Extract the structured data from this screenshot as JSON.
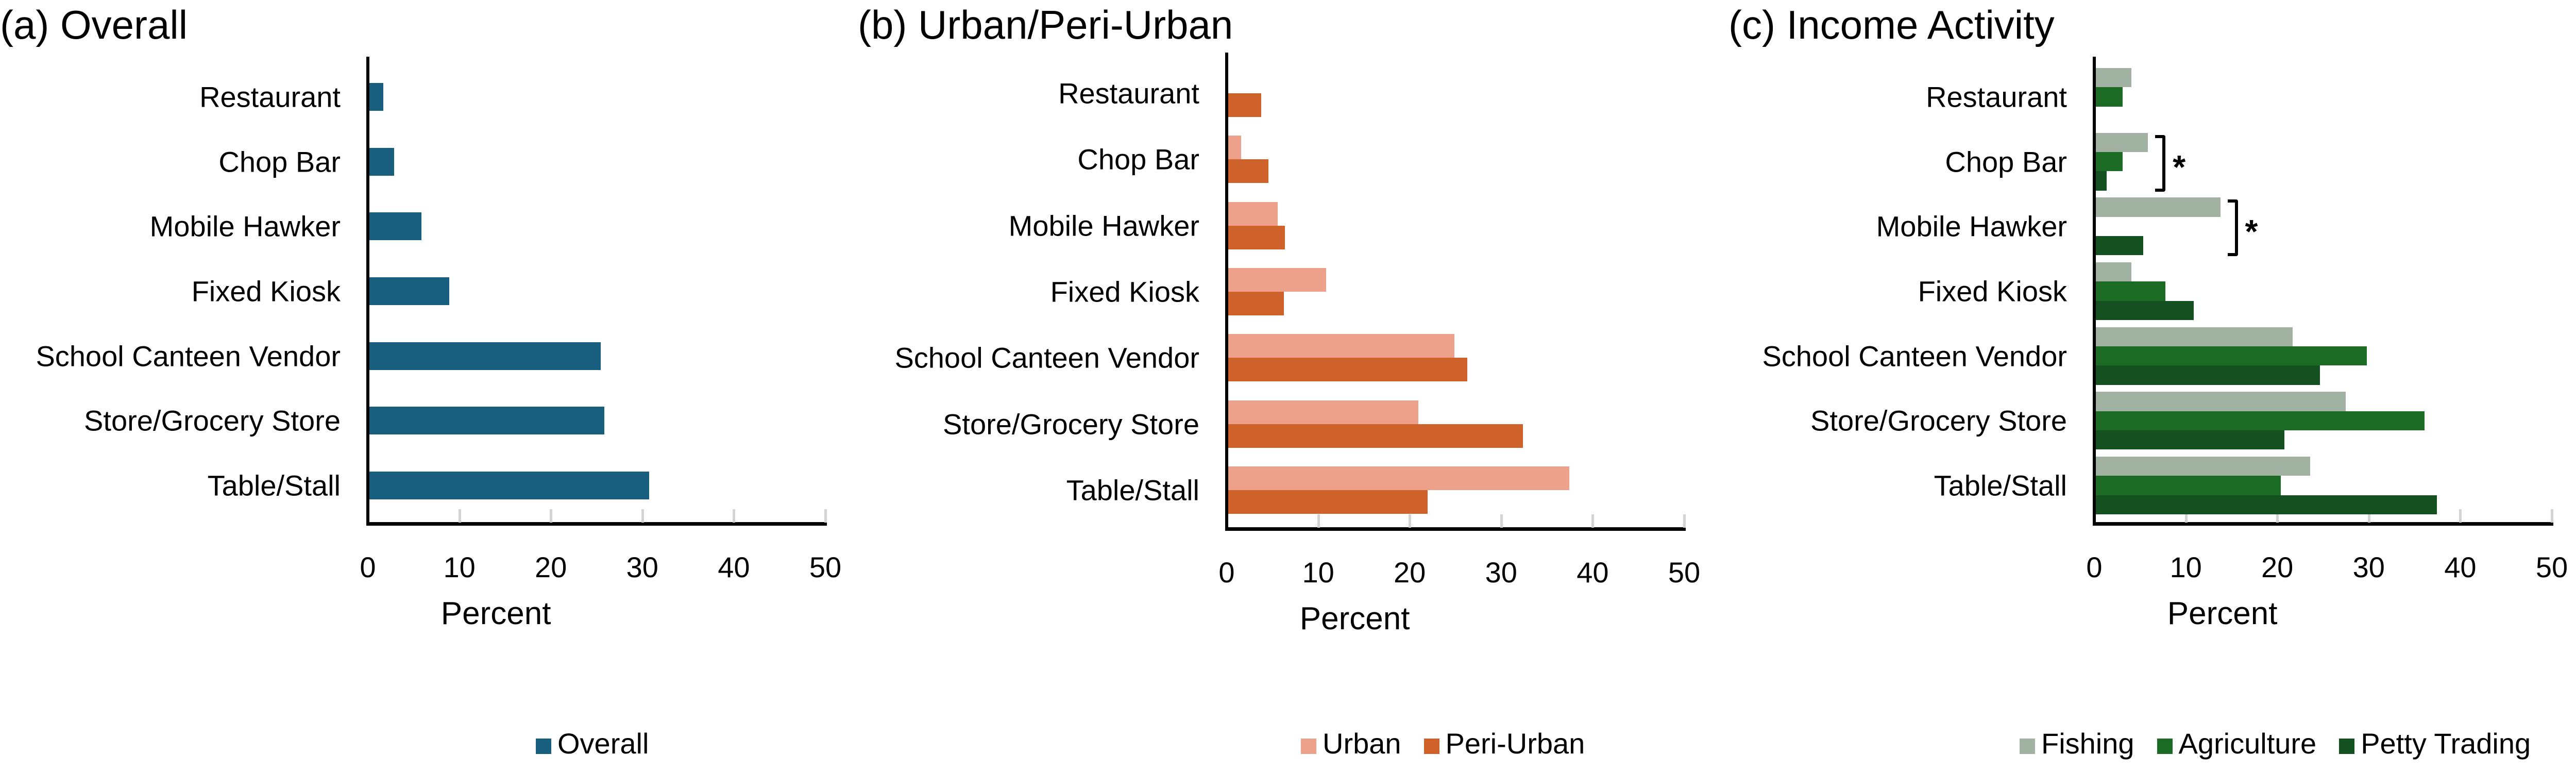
{
  "chart_data": [
    {
      "type": "bar",
      "orientation": "horizontal",
      "title": "(a) Overall",
      "xlabel": "Percent",
      "ylabel": "",
      "xlim": [
        0,
        50
      ],
      "xticks": [
        0,
        10,
        20,
        30,
        40,
        50
      ],
      "grid": false,
      "legend_position": "bottom",
      "categories": [
        "Restaurant",
        "Chop Bar",
        "Mobile Hawker",
        "Fixed Kiosk",
        "School Canteen Vendor",
        "Store/Grocery Store",
        "Table/Stall"
      ],
      "series": [
        {
          "name": "Overall",
          "color": "#175e7f",
          "values": [
            1.5,
            2.7,
            5.7,
            8.7,
            25.3,
            25.7,
            30.6
          ]
        }
      ]
    },
    {
      "type": "bar",
      "orientation": "horizontal",
      "title": "(b) Urban/Peri-Urban",
      "xlabel": "Percent",
      "ylabel": "",
      "xlim": [
        0,
        50
      ],
      "xticks": [
        0,
        10,
        20,
        30,
        40,
        50
      ],
      "grid": false,
      "legend_position": "bottom",
      "categories": [
        "Restaurant",
        "Chop Bar",
        "Mobile Hawker",
        "Fixed Kiosk",
        "School Canteen Vendor",
        "Store/Grocery Store",
        "Table/Stall"
      ],
      "series": [
        {
          "name": "Urban",
          "color": "#eea18a",
          "values": [
            0,
            1.4,
            5.4,
            10.7,
            24.7,
            20.8,
            37.3
          ]
        },
        {
          "name": "Peri-Urban",
          "color": "#cf622b",
          "values": [
            3.6,
            4.4,
            6.2,
            6.1,
            26.1,
            32.2,
            21.8
          ]
        }
      ]
    },
    {
      "type": "bar",
      "orientation": "horizontal",
      "title": "(c) Income Activity",
      "xlabel": "Percent",
      "ylabel": "",
      "xlim": [
        0,
        50
      ],
      "xticks": [
        0,
        10,
        20,
        30,
        40,
        50
      ],
      "grid": false,
      "legend_position": "bottom",
      "categories": [
        "Restaurant",
        "Chop Bar",
        "Mobile Hawker",
        "Fixed Kiosk",
        "School Canteen Vendor",
        "Store/Grocery Store",
        "Table/Stall"
      ],
      "series": [
        {
          "name": "Fishing",
          "color": "#a2b2a2",
          "values": [
            3.9,
            5.7,
            13.6,
            3.9,
            21.5,
            27.3,
            23.4
          ]
        },
        {
          "name": "Agriculture",
          "color": "#1b6b25",
          "values": [
            2.9,
            2.9,
            0,
            7.6,
            29.6,
            35.9,
            20.2
          ]
        },
        {
          "name": "Petty Trading",
          "color": "#155120",
          "values": [
            0,
            1.2,
            5.2,
            10.7,
            24.5,
            20.6,
            37.3
          ]
        }
      ],
      "annotations": [
        {
          "category": "Chop Bar",
          "text": "*",
          "type": "significance-bracket"
        },
        {
          "category": "Mobile Hawker",
          "text": "*",
          "type": "significance-bracket"
        }
      ]
    }
  ],
  "panels": [
    {
      "title": "(a) Overall",
      "xlabel": "Percent",
      "legend": [
        "Overall"
      ]
    },
    {
      "title": "(b) Urban/Peri-Urban",
      "xlabel": "Percent",
      "legend": [
        "Urban",
        "Peri-Urban"
      ]
    },
    {
      "title": "(c) Income Activity",
      "xlabel": "Percent",
      "legend": [
        "Fishing",
        "Agriculture",
        "Petty Trading"
      ]
    }
  ],
  "tick_labels": [
    "0",
    "10",
    "20",
    "30",
    "40",
    "50"
  ],
  "significance_marker": "*"
}
